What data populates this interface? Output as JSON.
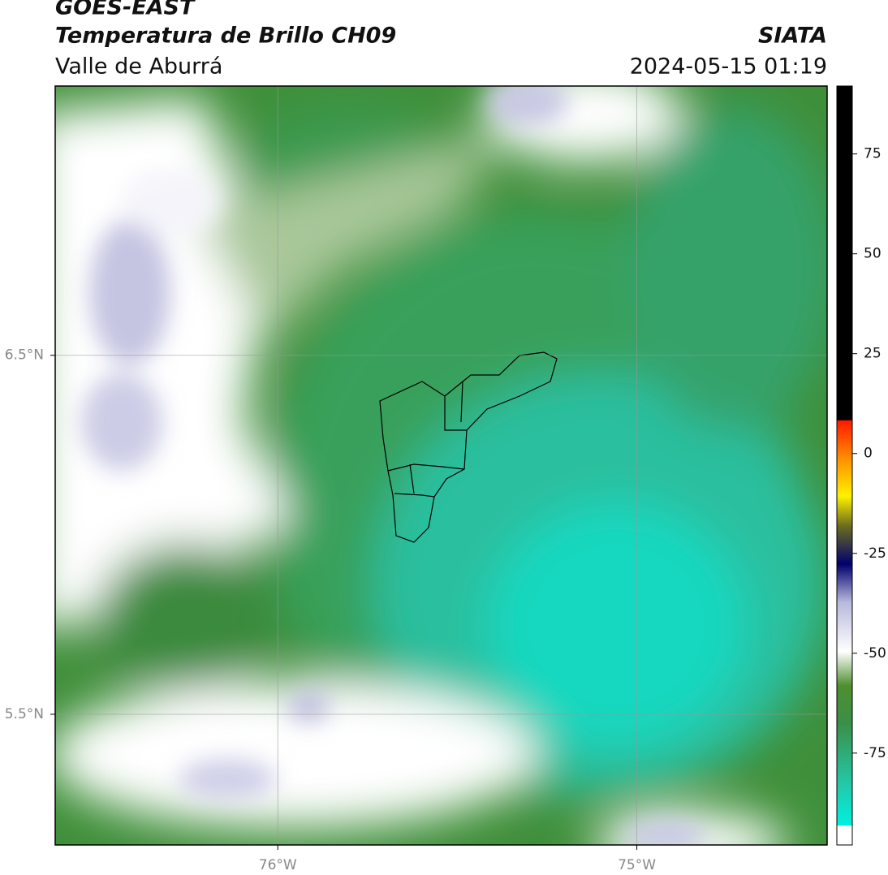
{
  "map": {
    "title": "GOES-EAST",
    "subtitle": "Temperatura de Brillo CH09",
    "region": "Valle de Aburrá",
    "source": "SIATA",
    "timestamp": "2024-05-15 01:19",
    "xlim": [
      -76.62,
      -74.47
    ],
    "ylim": [
      5.136,
      7.25
    ],
    "xticks": [
      {
        "value": -76,
        "label": "76°W"
      },
      {
        "value": -75,
        "label": "75°W"
      }
    ],
    "yticks": [
      {
        "value": 6.5,
        "label": "6.5°N"
      },
      {
        "value": 5.5,
        "label": "5.5°N"
      }
    ],
    "grid": true,
    "colorbar": {
      "lim": [
        -98,
        92
      ],
      "ticks": [
        75,
        50,
        25,
        0,
        -25,
        -50,
        -75
      ]
    }
  }
}
